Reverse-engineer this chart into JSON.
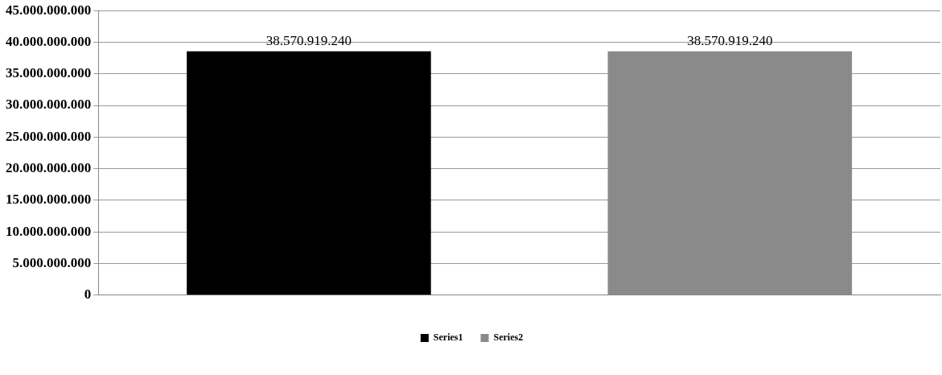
{
  "chart_data": {
    "type": "bar",
    "categories": [
      null
    ],
    "series": [
      {
        "name": "Series1",
        "color": "#000000",
        "values": [
          38570919240
        ],
        "value_labels": [
          "38.570.919.240"
        ]
      },
      {
        "name": "Series2",
        "color": "#8a8a8a",
        "values": [
          38570919240
        ],
        "value_labels": [
          "38.570.919.240"
        ]
      }
    ],
    "ylim": [
      0,
      45000000000
    ],
    "yticks": [
      {
        "value": 0,
        "label": "0"
      },
      {
        "value": 5000000000,
        "label": "5.000.000.000"
      },
      {
        "value": 10000000000,
        "label": "10.000.000.000"
      },
      {
        "value": 15000000000,
        "label": "15.000.000.000"
      },
      {
        "value": 20000000000,
        "label": "20.000.000.000"
      },
      {
        "value": 25000000000,
        "label": "25.000.000.000"
      },
      {
        "value": 30000000000,
        "label": "30.000.000.000"
      },
      {
        "value": 35000000000,
        "label": "35.000.000.000"
      },
      {
        "value": 40000000000,
        "label": "40.000.000.000"
      },
      {
        "value": 45000000000,
        "label": "45.000.000.000"
      }
    ],
    "grid": "y",
    "legend": "bottom"
  }
}
